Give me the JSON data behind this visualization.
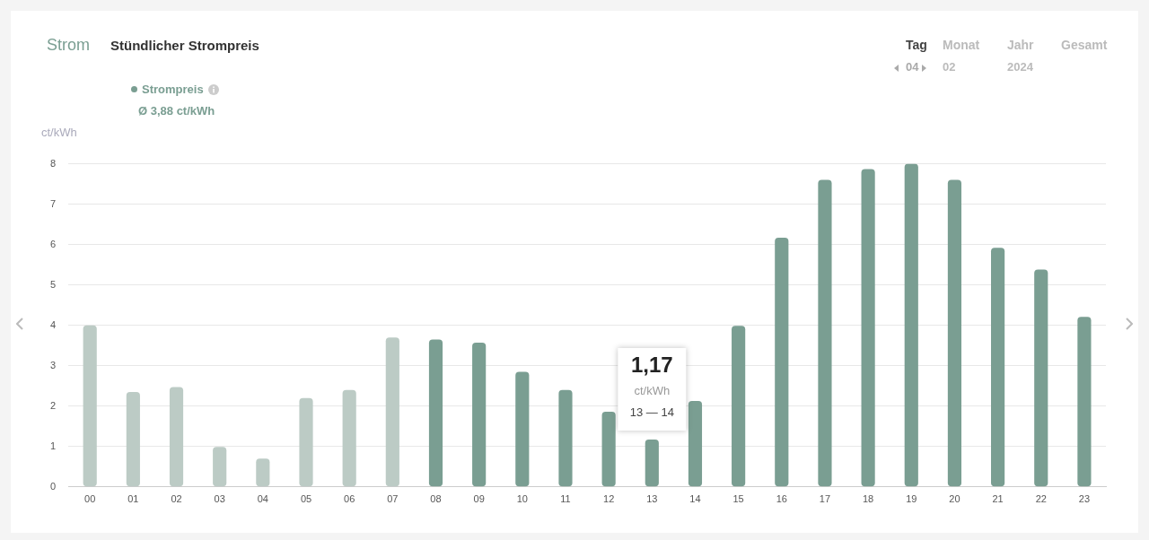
{
  "chart_data": {
    "type": "bar",
    "title": "Strom",
    "subtitle": "Stündlicher Strompreis",
    "ylabel": "ct/kWh",
    "categories": [
      "00",
      "01",
      "02",
      "03",
      "04",
      "05",
      "06",
      "07",
      "08",
      "09",
      "10",
      "11",
      "12",
      "13",
      "14",
      "15",
      "16",
      "17",
      "18",
      "19",
      "20",
      "21",
      "22",
      "23"
    ],
    "series": [
      {
        "name": "Strompreis",
        "color": "#7a9e92",
        "colors": [
          "#bccbc5",
          "#bccbc5",
          "#bccbc5",
          "#bccbc5",
          "#bccbc5",
          "#bccbc5",
          "#bccbc5",
          "#bccbc5",
          "#7a9e92",
          "#7a9e92",
          "#7a9e92",
          "#7a9e92",
          "#7a9e92",
          "#7a9e92",
          "#7a9e92",
          "#7a9e92",
          "#7a9e92",
          "#7a9e92",
          "#7a9e92",
          "#7a9e92",
          "#7a9e92",
          "#7a9e92",
          "#7a9e92",
          "#7a9e92"
        ],
        "values": [
          4.0,
          2.35,
          2.47,
          0.99,
          0.7,
          2.2,
          2.4,
          3.7,
          3.65,
          3.57,
          2.85,
          2.4,
          1.86,
          1.17,
          2.13,
          3.99,
          6.17,
          7.6,
          7.87,
          8.0,
          7.6,
          5.92,
          5.38,
          4.21
        ]
      }
    ],
    "ylim": [
      0,
      8
    ],
    "yticks": [
      0,
      1,
      2,
      3,
      4,
      5,
      6,
      7,
      8
    ],
    "grid": "y",
    "legend": "top left",
    "annotations": [
      "Tag",
      "04",
      "Monat",
      "02",
      "Jahr",
      "2024",
      "Gesamt",
      "Ø 3,88 ct/kWh",
      {
        "text": "1,17",
        "x": "13",
        "y": 1.17
      },
      "ct/kWh",
      "13 — 14"
    ]
  }
}
